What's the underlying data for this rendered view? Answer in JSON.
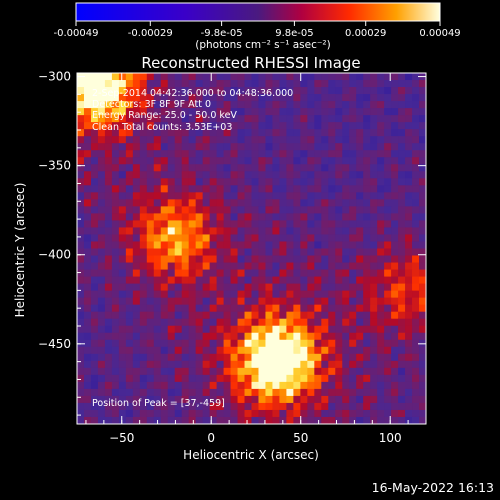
{
  "colorbar": {
    "tick_labels": [
      "-0.00049",
      "-0.00029",
      "-9.8e-05",
      "9.8e-05",
      "0.00029",
      "0.00049"
    ],
    "tick_values": [
      -0.00049,
      -0.00029,
      -9.8e-05,
      9.8e-05,
      0.00029,
      0.00049
    ],
    "range": [
      -0.00049,
      0.00049
    ],
    "units_label": "(photons cm⁻² s⁻¹ asec⁻²)"
  },
  "chart_data": {
    "type": "heatmap",
    "title": "Reconstructed RHESSI Image",
    "xlabel": "Heliocentric X (arcsec)",
    "ylabel": "Heliocentric Y (arcsec)",
    "xlim": [
      -75,
      120
    ],
    "ylim": [
      -495,
      -298
    ],
    "x_ticks": [
      -50,
      0,
      50,
      100
    ],
    "x_tick_labels": [
      "−50",
      "0",
      "50",
      "100"
    ],
    "y_ticks": [
      -300,
      -350,
      -400,
      -450
    ],
    "y_tick_labels": [
      "−300",
      "−350",
      "−400",
      "−450"
    ],
    "peak": [
      37,
      -459
    ],
    "sources": [
      {
        "x": 37,
        "y": -459,
        "strength": 1.0
      },
      {
        "x": -65,
        "y": -305,
        "strength": 0.9
      },
      {
        "x": -20,
        "y": -390,
        "strength": 0.55
      },
      {
        "x": 110,
        "y": -420,
        "strength": 0.35
      }
    ],
    "annotations": [
      "2-Sep-2014 04:42:36.000 to 04:48:36.000",
      "Detectors: 3F 8F 9F  Att 0",
      "Energy Range: 25.0 - 50.0 keV",
      "Clean      Total counts: 3.53E+03",
      "Position of Peak = [37,-459]"
    ]
  },
  "timestamp": "16-May-2022 16:13"
}
